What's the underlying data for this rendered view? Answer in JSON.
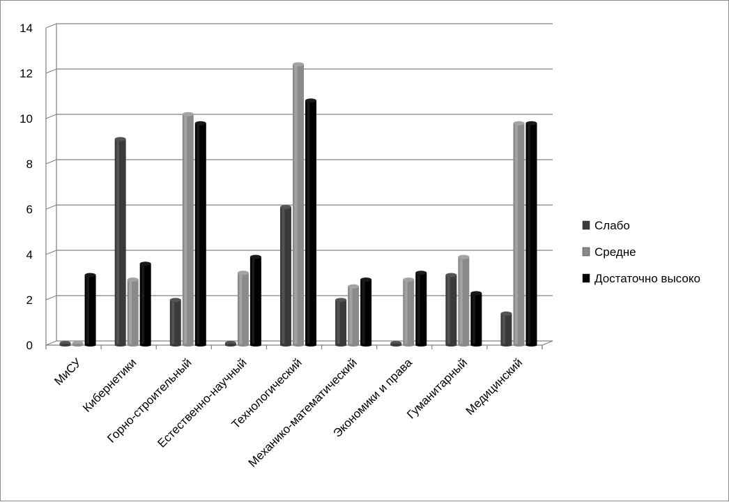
{
  "chart_data": {
    "type": "bar",
    "title": "",
    "xlabel": "",
    "ylabel": "",
    "ylim": [
      0,
      14
    ],
    "yticks": [
      0,
      2,
      4,
      6,
      8,
      10,
      12,
      14
    ],
    "grid": true,
    "legend_position": "right",
    "categories": [
      "МиСУ",
      "Кибернетики",
      "Горно-строительный",
      "Естественно-научный",
      "Технологический",
      "Механико-математический",
      "Экономики и права",
      "Гуманитарный",
      "Медицинский"
    ],
    "series": [
      {
        "name": "Слабо",
        "color": "#3a3a3a",
        "values": [
          0,
          9,
          1.9,
          0,
          6,
          1.9,
          0,
          3,
          1.3
        ]
      },
      {
        "name": "Средне",
        "color": "#8a8a8a",
        "values": [
          0,
          2.8,
          10.1,
          3.1,
          12.3,
          2.5,
          2.8,
          3.8,
          9.7
        ]
      },
      {
        "name": "Достаточно высоко",
        "color": "#000000",
        "values": [
          3,
          3.5,
          9.7,
          3.8,
          10.7,
          2.8,
          3.1,
          2.2,
          9.7
        ]
      }
    ]
  }
}
